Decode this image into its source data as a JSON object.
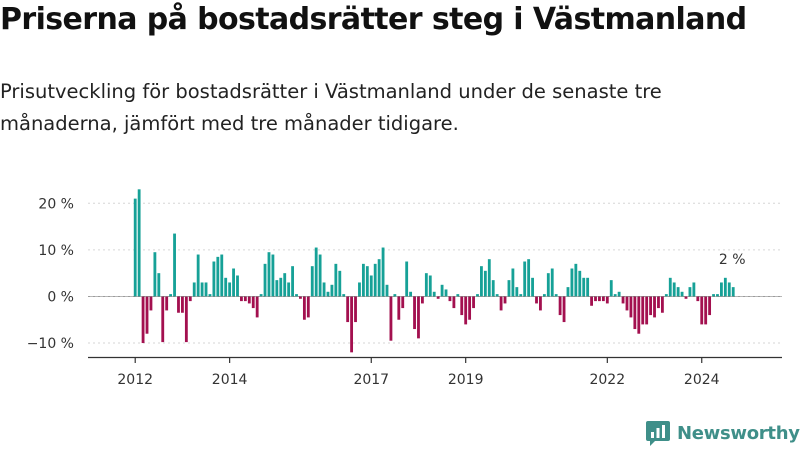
{
  "title": "Priserna på bostadsrätter steg i Västmanland",
  "subtitle": "Prisutveckling för bostadsrätter i Västmanland under de senaste tre månaderna, jämfört med tre månader tidigare.",
  "brand": {
    "name": "Newsworthy",
    "icon": "newsworthy-logo-icon"
  },
  "colors": {
    "positive": "#16a197",
    "negative": "#a3104f",
    "axis": "#333333",
    "grid": "#d6d6d6"
  },
  "chart_data": {
    "type": "bar",
    "title": "",
    "xlabel": "",
    "ylabel": "",
    "ylim": [
      -13,
      25
    ],
    "yticks": [
      {
        "value": 20,
        "label": "20 %"
      },
      {
        "value": 10,
        "label": "10 %"
      },
      {
        "value": 0,
        "label": "0 %"
      },
      {
        "value": -10,
        "label": "−10 %"
      }
    ],
    "xlim": [
      2011.0,
      2025.7
    ],
    "xticks": [
      {
        "value": 2012,
        "label": "2012"
      },
      {
        "value": 2014,
        "label": "2014"
      },
      {
        "value": 2017,
        "label": "2017"
      },
      {
        "value": 2019,
        "label": "2019"
      },
      {
        "value": 2022,
        "label": "2022"
      },
      {
        "value": 2024,
        "label": "2024"
      }
    ],
    "start": "2012-01",
    "frequency": "monthly",
    "values": [
      21,
      23,
      -10,
      -8,
      -3,
      9.5,
      5,
      -9.8,
      -3,
      0.5,
      13.5,
      -3.5,
      -3.5,
      -9.8,
      -1,
      3,
      9,
      3,
      3,
      0.5,
      7.5,
      8.5,
      9,
      4,
      3,
      6,
      4.5,
      -1,
      -1,
      -1.5,
      -2.5,
      -4.5,
      0.5,
      7,
      9.5,
      9,
      3.5,
      4,
      5,
      3,
      6.5,
      0.5,
      -0.5,
      -5,
      -4.5,
      6.5,
      10.5,
      9,
      3,
      1,
      2.5,
      7,
      5.5,
      0.5,
      -5.5,
      -12,
      -5.5,
      3,
      7,
      6.5,
      4.5,
      7,
      8,
      10.5,
      2.5,
      -9.5,
      0.5,
      -5,
      -2.5,
      7.5,
      1,
      -7,
      -9,
      -1.5,
      5,
      4.5,
      1,
      -0.5,
      2.5,
      1.5,
      -1,
      -2.5,
      0.5,
      -4,
      -6,
      -5,
      -2.5,
      0.5,
      6.5,
      5.5,
      8,
      3.5,
      0.5,
      -3,
      -1.5,
      3.5,
      6,
      2,
      0.5,
      7.5,
      8,
      4,
      -1.5,
      -3,
      0.5,
      5,
      6,
      0.5,
      -4,
      -5.5,
      2,
      6,
      7,
      5.5,
      4,
      4,
      -2,
      -1,
      -1,
      -1,
      -1.5,
      3.5,
      0.5,
      1,
      -1.5,
      -3,
      -4.5,
      -7,
      -8,
      -6,
      -6,
      -4,
      -4.5,
      -2.5,
      -3.5,
      0.5,
      4,
      3,
      2,
      1,
      -0.5,
      2,
      3,
      -1,
      -6,
      -6,
      -4,
      0.5,
      0.5,
      3,
      4,
      3,
      2
    ],
    "annotation": {
      "label": "2 %",
      "value": 2
    }
  }
}
